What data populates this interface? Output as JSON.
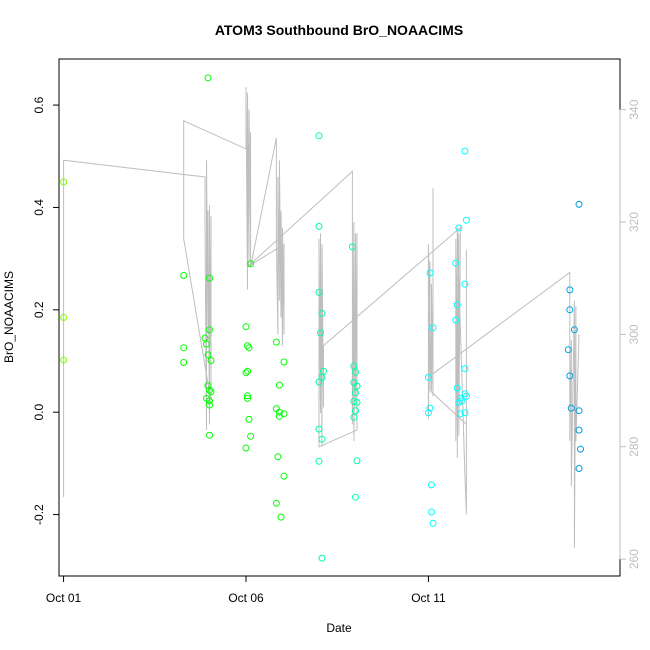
{
  "chart_data": {
    "type": "scatter",
    "title": "ATOM3 Southbound BrO_NOAACIMS",
    "xlabel": "Date",
    "ylabel": "BrO_NOAACIMS",
    "x_ticks": [
      "Oct 01",
      "Oct 06",
      "Oct 11"
    ],
    "y_ticks": [
      "-0.2",
      "0.0",
      "0.2",
      "0.4",
      "0.6"
    ],
    "y_right_ticks": [
      "260",
      "280",
      "300",
      "320",
      "340"
    ],
    "x_range": [
      "2017-09-30T21:00",
      "2017-10-16T06:00"
    ],
    "ylim": [
      -0.32,
      0.69
    ],
    "y_right_lim": [
      257,
      349
    ],
    "grid": false,
    "colors": {
      "axis": "#000000",
      "right_axis": "#bebebe",
      "line": "#bebebe"
    },
    "series": [
      {
        "color": "#7FFF00",
        "points": [
          [
            "2017-10-01T00:00",
            0.45
          ],
          [
            "2017-10-01T00:00",
            0.185
          ],
          [
            "2017-10-01T00:00",
            0.102
          ]
        ]
      },
      {
        "color": "#00FF00",
        "points": [
          [
            "2017-10-04T07:00",
            0.267
          ],
          [
            "2017-10-04T07:00",
            0.126
          ],
          [
            "2017-10-04T07:00",
            0.097
          ],
          [
            "2017-10-04T23:00",
            0.653
          ],
          [
            "2017-10-04T21:00",
            0.145
          ],
          [
            "2017-10-04T22:00",
            0.133
          ],
          [
            "2017-10-05T00:00",
            0.262
          ],
          [
            "2017-10-05T00:00",
            0.161
          ],
          [
            "2017-10-04T23:00",
            0.112
          ],
          [
            "2017-10-05T01:00",
            0.101
          ],
          [
            "2017-10-04T23:00",
            0.052
          ],
          [
            "2017-10-05T00:00",
            0.043
          ],
          [
            "2017-10-05T01:00",
            0.04
          ],
          [
            "2017-10-04T22:00",
            0.027
          ],
          [
            "2017-10-05T00:00",
            0.022
          ],
          [
            "2017-10-05T00:00",
            0.014
          ],
          [
            "2017-10-05T00:00",
            -0.045
          ],
          [
            "2017-10-06T03:00",
            0.29
          ],
          [
            "2017-10-06T00:00",
            0.167
          ],
          [
            "2017-10-06T01:00",
            0.13
          ],
          [
            "2017-10-06T02:00",
            0.126
          ],
          [
            "2017-10-06T01:00",
            0.08
          ],
          [
            "2017-10-06T00:00",
            0.077
          ],
          [
            "2017-10-06T01:00",
            0.032
          ],
          [
            "2017-10-06T01:00",
            0.027
          ],
          [
            "2017-10-06T02:00",
            -0.014
          ],
          [
            "2017-10-06T03:00",
            -0.047
          ],
          [
            "2017-10-06T00:00",
            -0.07
          ],
          [
            "2017-10-06T20:00",
            0.137
          ],
          [
            "2017-10-07T01:00",
            0.098
          ],
          [
            "2017-10-06T22:00",
            0.053
          ],
          [
            "2017-10-06T20:00",
            0.007
          ],
          [
            "2017-10-06T22:00",
            0.0
          ],
          [
            "2017-10-07T01:00",
            -0.003
          ],
          [
            "2017-10-06T22:00",
            -0.008
          ],
          [
            "2017-10-06T21:00",
            -0.087
          ],
          [
            "2017-10-07T01:00",
            -0.125
          ],
          [
            "2017-10-06T20:00",
            -0.178
          ],
          [
            "2017-10-06T23:00",
            -0.205
          ]
        ]
      },
      {
        "color": "#00FFA0",
        "points": [
          [
            "2017-10-08T00:00",
            0.54
          ],
          [
            "2017-10-08T00:00",
            0.363
          ],
          [
            "2017-10-08T00:00",
            0.234
          ],
          [
            "2017-10-08T02:00",
            0.193
          ],
          [
            "2017-10-08T01:00",
            0.155
          ],
          [
            "2017-10-08T03:00",
            0.08
          ],
          [
            "2017-10-08T02:00",
            0.068
          ],
          [
            "2017-10-08T00:00",
            0.059
          ],
          [
            "2017-10-08T00:00",
            -0.033
          ],
          [
            "2017-10-08T02:00",
            -0.053
          ],
          [
            "2017-10-08T00:00",
            -0.096
          ],
          [
            "2017-10-08T02:00",
            -0.285
          ],
          [
            "2017-10-08T22:00",
            0.323
          ],
          [
            "2017-10-08T23:00",
            0.09
          ],
          [
            "2017-10-09T00:00",
            0.078
          ],
          [
            "2017-10-08T23:00",
            0.058
          ],
          [
            "2017-10-09T01:00",
            0.051
          ],
          [
            "2017-10-09T00:00",
            0.038
          ],
          [
            "2017-10-09T01:00",
            0.019
          ],
          [
            "2017-10-08T23:00",
            0.021
          ],
          [
            "2017-10-09T00:00",
            0.003
          ],
          [
            "2017-10-08T23:00",
            -0.01
          ],
          [
            "2017-10-09T01:00",
            -0.095
          ],
          [
            "2017-10-09T00:00",
            -0.166
          ]
        ]
      },
      {
        "color": "#00FFFF",
        "points": [
          [
            "2017-10-11T01:00",
            0.272
          ],
          [
            "2017-10-11T03:00",
            0.165
          ],
          [
            "2017-10-11T00:00",
            0.068
          ],
          [
            "2017-10-11T01:00",
            0.008
          ],
          [
            "2017-10-11T00:00",
            -0.001
          ],
          [
            "2017-10-11T02:00",
            -0.142
          ],
          [
            "2017-10-11T02:00",
            -0.195
          ],
          [
            "2017-10-11T03:00",
            -0.217
          ],
          [
            "2017-10-12T00:00",
            0.51
          ],
          [
            "2017-10-12T01:00",
            0.375
          ],
          [
            "2017-10-11T20:00",
            0.36
          ],
          [
            "2017-10-11T18:00",
            0.291
          ],
          [
            "2017-10-12T00:00",
            0.25
          ],
          [
            "2017-10-11T19:00",
            0.21
          ],
          [
            "2017-10-11T18:00",
            0.18
          ],
          [
            "2017-10-12T00:00",
            0.085
          ],
          [
            "2017-10-11T19:00",
            0.047
          ],
          [
            "2017-10-12T00:00",
            0.036
          ],
          [
            "2017-10-12T01:00",
            0.031
          ],
          [
            "2017-10-11T21:00",
            0.027
          ],
          [
            "2017-10-11T22:00",
            0.022
          ],
          [
            "2017-10-11T20:00",
            0.019
          ],
          [
            "2017-10-12T00:00",
            -0.001
          ],
          [
            "2017-10-11T21:00",
            -0.003
          ]
        ]
      },
      {
        "color": "#00A0E0",
        "points": [
          [
            "2017-10-15T03:00",
            0.406
          ],
          [
            "2017-10-14T21:00",
            0.239
          ],
          [
            "2017-10-14T21:00",
            0.2
          ],
          [
            "2017-10-15T00:00",
            0.161
          ],
          [
            "2017-10-14T20:00",
            0.122
          ],
          [
            "2017-10-14T21:00",
            0.071
          ],
          [
            "2017-10-14T22:00",
            0.008
          ],
          [
            "2017-10-15T03:00",
            0.003
          ],
          [
            "2017-10-15T03:00",
            -0.035
          ],
          [
            "2017-10-15T04:00",
            -0.072
          ],
          [
            "2017-10-15T03:00",
            -0.11
          ]
        ]
      }
    ],
    "secondary_line": {
      "axis": "right",
      "color": "#bebebe",
      "points": [
        [
          "2017-10-01T00:00",
          271
        ],
        [
          "2017-10-01T00:00",
          322
        ],
        [
          "2017-10-01T00:00",
          331
        ],
        [
          "2017-10-04T21:00",
          328
        ],
        [
          "2017-10-04T21:00",
          320
        ],
        [
          "2017-10-04T22:00",
          283
        ],
        [
          "2017-10-04T22:00",
          331
        ],
        [
          "2017-10-04T23:00",
          300
        ],
        [
          "2017-10-04T23:00",
          322
        ],
        [
          "2017-10-05T00:00",
          284
        ],
        [
          "2017-10-05T00:00",
          323
        ],
        [
          "2017-10-05T00:00",
          292
        ],
        [
          "2017-10-05T01:00",
          321
        ],
        [
          "2017-10-05T01:00",
          290
        ],
        [
          "2017-10-05T01:00",
          303
        ],
        [
          "2017-10-05T01:00",
          320
        ],
        [
          "2017-10-05T01:00",
          288
        ],
        [
          "2017-10-04T07:00",
          317
        ],
        [
          "2017-10-04T07:00",
          338
        ],
        [
          "2017-10-06T00:00",
          333
        ],
        [
          "2017-10-06T00:00",
          344
        ],
        [
          "2017-10-06T01:00",
          308
        ],
        [
          "2017-10-06T01:00",
          343
        ],
        [
          "2017-10-06T02:00",
          312
        ],
        [
          "2017-10-06T02:00",
          340
        ],
        [
          "2017-10-06T03:00",
          318
        ],
        [
          "2017-10-06T03:00",
          336
        ],
        [
          "2017-10-06T03:00",
          312
        ],
        [
          "2017-10-06T20:00",
          335
        ],
        [
          "2017-10-06T20:00",
          316
        ],
        [
          "2017-10-06T21:00",
          300
        ],
        [
          "2017-10-06T21:00",
          328
        ],
        [
          "2017-10-06T22:00",
          306
        ],
        [
          "2017-10-06T22:00",
          331
        ],
        [
          "2017-10-06T23:00",
          303
        ],
        [
          "2017-10-06T23:00",
          322
        ],
        [
          "2017-10-07T00:00",
          298
        ],
        [
          "2017-10-07T00:00",
          319
        ],
        [
          "2017-10-07T01:00",
          300
        ],
        [
          "2017-10-07T01:00",
          316
        ],
        [
          "2017-10-06T01:00",
          312
        ],
        [
          "2017-10-08T22:00",
          329
        ],
        [
          "2017-10-08T22:00",
          284
        ],
        [
          "2017-10-08T23:00",
          320
        ],
        [
          "2017-10-08T23:00",
          281
        ],
        [
          "2017-10-09T00:00",
          318
        ],
        [
          "2017-10-09T00:00",
          288
        ],
        [
          "2017-10-09T01:00",
          318
        ],
        [
          "2017-10-09T01:00",
          283
        ],
        [
          "2017-10-08T00:00",
          280
        ],
        [
          "2017-10-08T00:00",
          317
        ],
        [
          "2017-10-08T01:00",
          286
        ],
        [
          "2017-10-08T01:00",
          318
        ],
        [
          "2017-10-08T02:00",
          280
        ],
        [
          "2017-10-08T02:00",
          316
        ],
        [
          "2017-10-08T03:00",
          287
        ],
        [
          "2017-10-08T03:00",
          298
        ],
        [
          "2017-10-11T21:00",
          319
        ],
        [
          "2017-10-11T20:00",
          282
        ],
        [
          "2017-10-11T20:00",
          318
        ],
        [
          "2017-10-11T19:00",
          278
        ],
        [
          "2017-10-11T19:00",
          314
        ],
        [
          "2017-10-11T18:00",
          281
        ],
        [
          "2017-10-11T18:00",
          317
        ],
        [
          "2017-10-11T19:00",
          283
        ],
        [
          "2017-10-11T19:00",
          319
        ],
        [
          "2017-10-12T00:00",
          275
        ],
        [
          "2017-10-12T01:00",
          268
        ],
        [
          "2017-10-12T01:00",
          315
        ],
        [
          "2017-10-12T01:00",
          284
        ],
        [
          "2017-10-11T01:00",
          290
        ],
        [
          "2017-10-11T01:00",
          313
        ],
        [
          "2017-10-11T00:00",
          285
        ],
        [
          "2017-10-11T00:00",
          316
        ],
        [
          "2017-10-11T02:00",
          290
        ],
        [
          "2017-10-11T02:00",
          309
        ],
        [
          "2017-10-11T03:00",
          289
        ],
        [
          "2017-10-11T03:00",
          326
        ],
        [
          "2017-10-11T03:00",
          293
        ],
        [
          "2017-10-14T21:00",
          311
        ],
        [
          "2017-10-14T21:00",
          281
        ],
        [
          "2017-10-14T22:00",
          299
        ],
        [
          "2017-10-14T22:00",
          273
        ],
        [
          "2017-10-15T00:00",
          306
        ],
        [
          "2017-10-15T00:00",
          262
        ],
        [
          "2017-10-15T01:00",
          305
        ],
        [
          "2017-10-15T01:00",
          281
        ],
        [
          "2017-10-15T03:00",
          300
        ]
      ]
    }
  }
}
